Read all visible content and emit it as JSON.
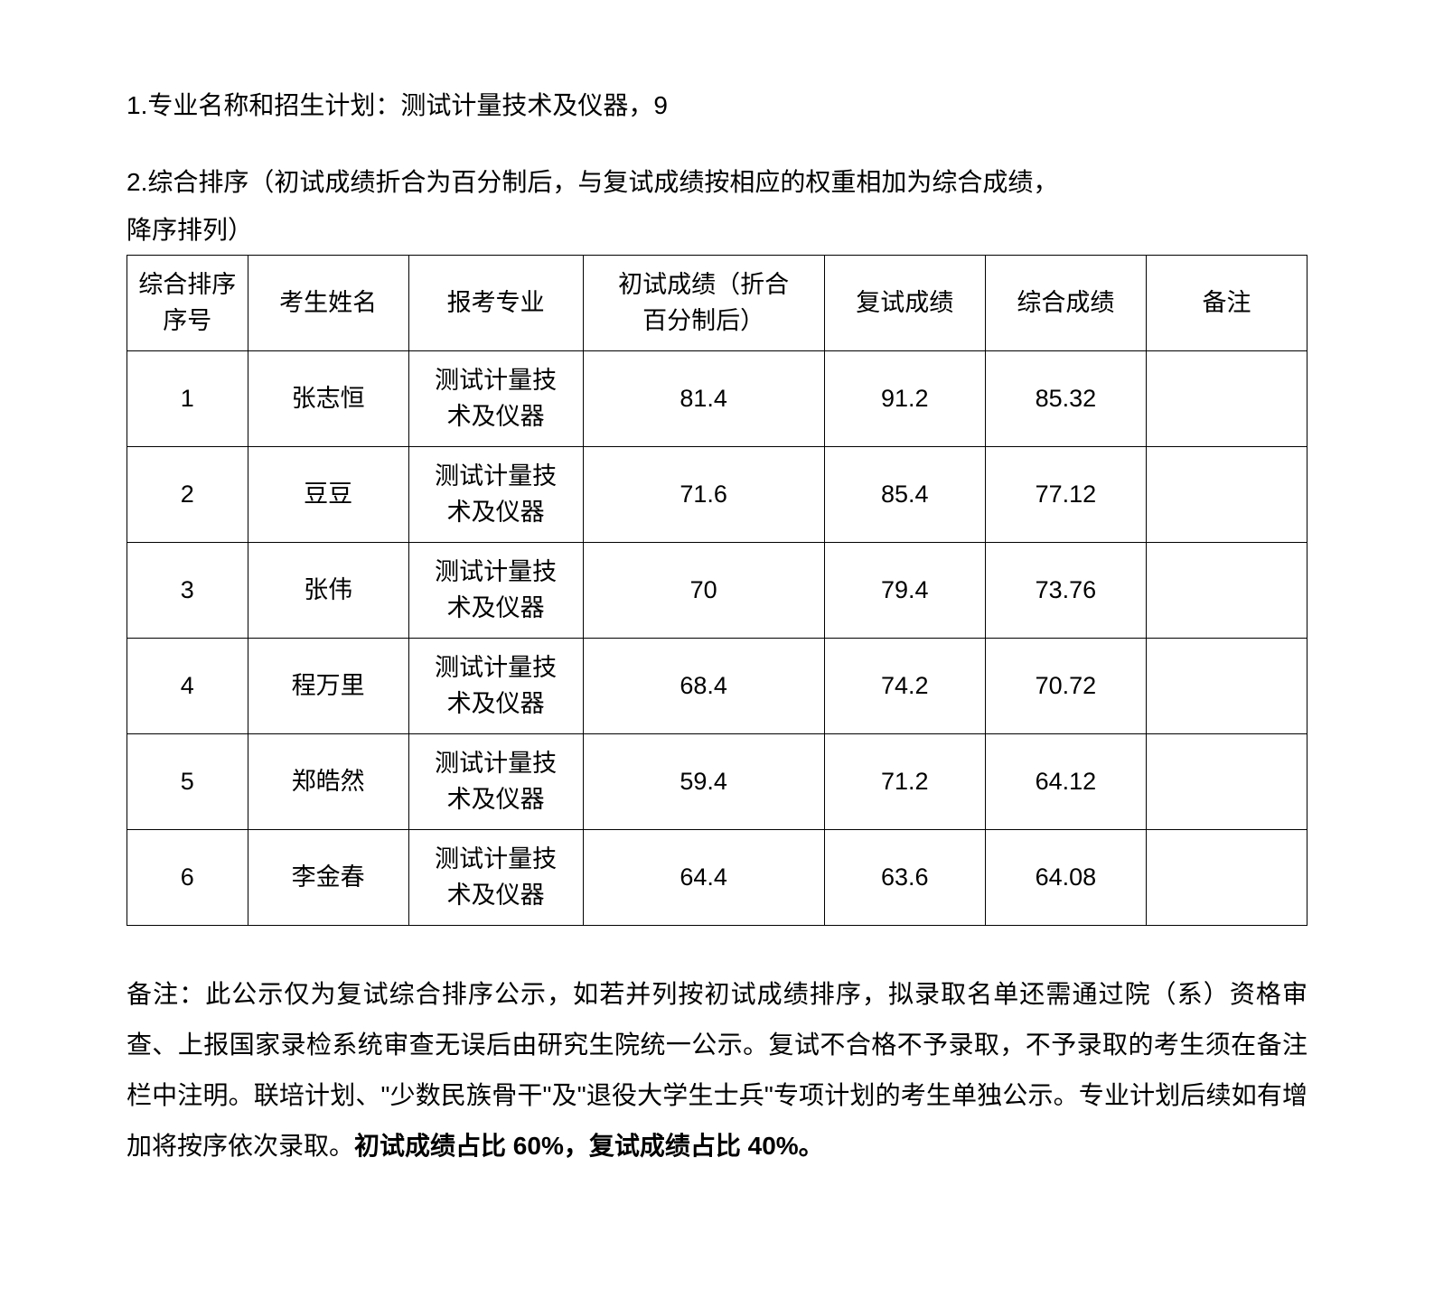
{
  "paragraph1": "1.专业名称和招生计划：测试计量技术及仪器，9",
  "paragraph2_line1": "2.综合排序（初试成绩折合为百分制后，与复试成绩按相应的权重相加为综合成绩，",
  "paragraph2_line2": "降序排列）",
  "table": {
    "headers": {
      "rank_line1": "综合排序",
      "rank_line2": "序号",
      "name": "考生姓名",
      "major": "报考专业",
      "initial_line1": "初试成绩（折合",
      "initial_line2": "百分制后）",
      "retest": "复试成绩",
      "final": "综合成绩",
      "remark": "备注"
    },
    "rows": [
      {
        "rank": "1",
        "name": "张志恒",
        "major_l1": "测试计量技",
        "major_l2": "术及仪器",
        "initial": "81.4",
        "retest": "91.2",
        "final": "85.32",
        "remark": ""
      },
      {
        "rank": "2",
        "name": "豆豆",
        "major_l1": "测试计量技",
        "major_l2": "术及仪器",
        "initial": "71.6",
        "retest": "85.4",
        "final": "77.12",
        "remark": ""
      },
      {
        "rank": "3",
        "name": "张伟",
        "major_l1": "测试计量技",
        "major_l2": "术及仪器",
        "initial": "70",
        "retest": "79.4",
        "final": "73.76",
        "remark": ""
      },
      {
        "rank": "4",
        "name": "程万里",
        "major_l1": "测试计量技",
        "major_l2": "术及仪器",
        "initial": "68.4",
        "retest": "74.2",
        "final": "70.72",
        "remark": ""
      },
      {
        "rank": "5",
        "name": "郑皓然",
        "major_l1": "测试计量技",
        "major_l2": "术及仪器",
        "initial": "59.4",
        "retest": "71.2",
        "final": "64.12",
        "remark": ""
      },
      {
        "rank": "6",
        "name": "李金春",
        "major_l1": "测试计量技",
        "major_l2": "术及仪器",
        "initial": "64.4",
        "retest": "63.6",
        "final": "64.08",
        "remark": ""
      }
    ]
  },
  "footer": {
    "part1": "备注：此公示仅为复试综合排序公示，如若并列按初试成绩排序，拟录取名单还需通过院（系）资格审查、上报国家录检系统审查无误后由研究生院统一公示。复试不合格不予录取，不予录取的考生须在备注栏中注明。联培计划、\"少数民族骨干\"及\"退役大学生士兵\"专项计划的考生单独公示。专业计划后续如有增加将按序依次录取。",
    "bold_part": "初试成绩占比 60%，复试成绩占比 40%。"
  }
}
